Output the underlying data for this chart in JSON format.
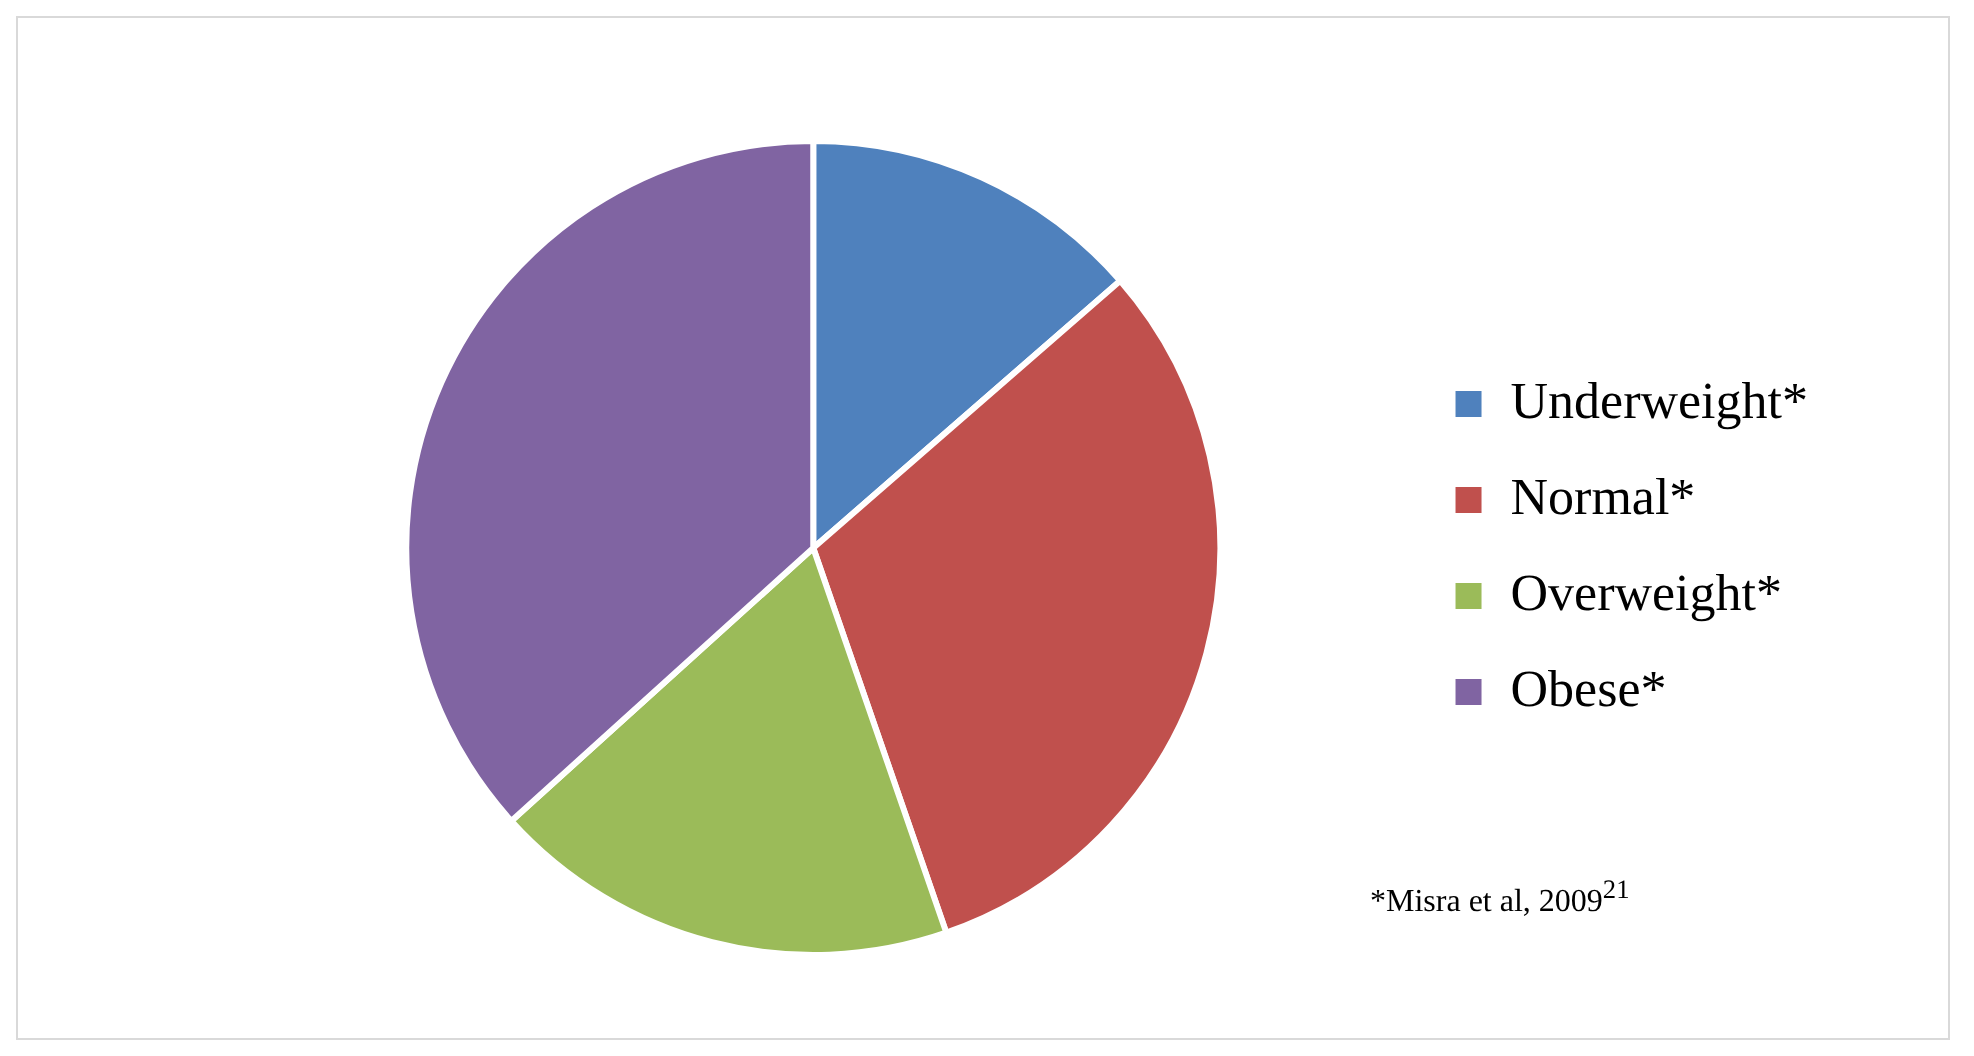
{
  "chart_data": {
    "type": "pie",
    "categories": [
      "Underweight*",
      "Normal*",
      "Overweight*",
      "Obese*"
    ],
    "values": [
      13.6,
      31.1,
      18.6,
      36.7
    ],
    "colors": [
      "#4f81bd",
      "#c0504d",
      "#9bbb59",
      "#8064a2"
    ],
    "legend": "right",
    "annotations": [
      "*Misra et al, 2009$^{21}$"
    ]
  }
}
